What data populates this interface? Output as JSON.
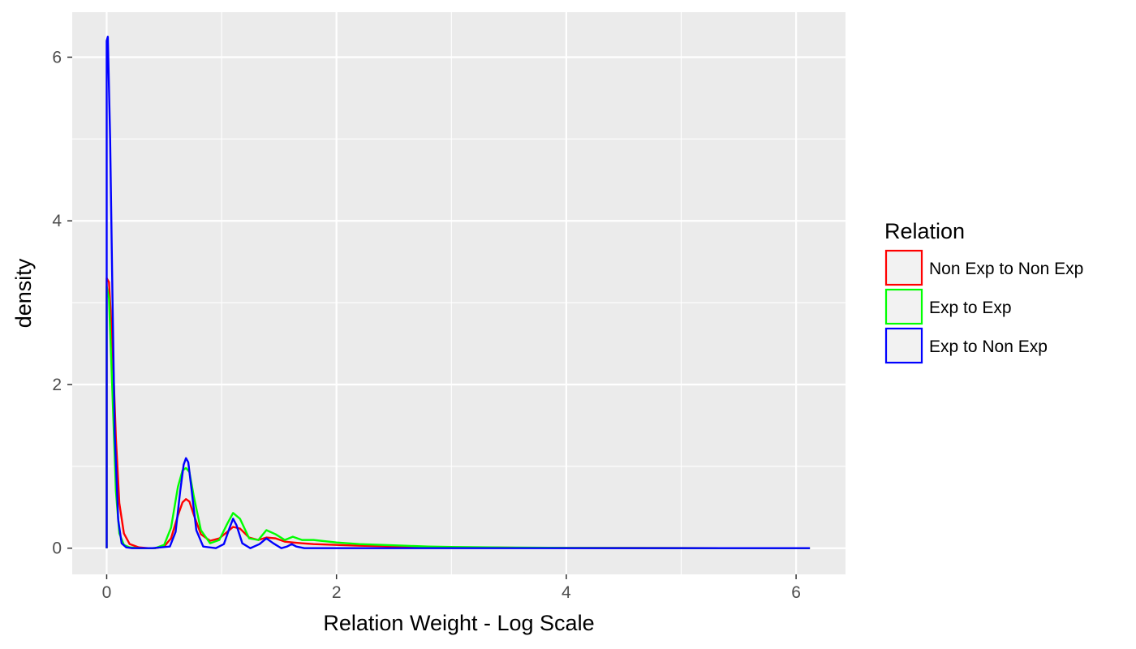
{
  "chart_data": {
    "type": "line",
    "title": "",
    "xlabel": "Relation Weight - Log Scale",
    "ylabel": "density",
    "xlim": [
      -0.3,
      6.43
    ],
    "ylim": [
      -0.32,
      6.55
    ],
    "xticks": [
      0,
      2,
      4,
      6
    ],
    "yticks": [
      0,
      2,
      4,
      6
    ],
    "xtick_labels": [
      "0",
      "2",
      "4",
      "6"
    ],
    "ytick_labels": [
      "0",
      "2",
      "4",
      "6"
    ],
    "grid": true,
    "legend": {
      "title": "Relation",
      "position": "right"
    },
    "series": [
      {
        "name": "Non Exp to Non Exp",
        "color": "#ff0000",
        "x": [
          0,
          0,
          0.02,
          0.05,
          0.08,
          0.11,
          0.15,
          0.2,
          0.28,
          0.36,
          0.42,
          0.5,
          0.56,
          0.62,
          0.66,
          0.69,
          0.72,
          0.76,
          0.82,
          0.9,
          0.98,
          1.05,
          1.1,
          1.16,
          1.24,
          1.32,
          1.39,
          1.47,
          1.55,
          1.62,
          1.7,
          1.8,
          2.0,
          2.2,
          2.4,
          2.6,
          2.8,
          3.0,
          3.5,
          4.0,
          5.0,
          6.0,
          6.12,
          6.12
        ],
        "y": [
          0,
          3.3,
          3.25,
          2.5,
          1.35,
          0.55,
          0.18,
          0.05,
          0.01,
          0.0,
          0.0,
          0.02,
          0.12,
          0.4,
          0.56,
          0.6,
          0.57,
          0.4,
          0.17,
          0.09,
          0.12,
          0.2,
          0.26,
          0.24,
          0.13,
          0.1,
          0.13,
          0.12,
          0.08,
          0.07,
          0.06,
          0.05,
          0.04,
          0.03,
          0.025,
          0.02,
          0.015,
          0.01,
          0.006,
          0.003,
          0.001,
          0.0,
          0.0,
          0
        ]
      },
      {
        "name": "Exp to Exp",
        "color": "#00ff00",
        "x": [
          0,
          0,
          0.02,
          0.05,
          0.08,
          0.11,
          0.15,
          0.2,
          0.28,
          0.36,
          0.42,
          0.5,
          0.56,
          0.62,
          0.66,
          0.69,
          0.72,
          0.76,
          0.82,
          0.9,
          0.98,
          1.05,
          1.1,
          1.16,
          1.24,
          1.32,
          1.39,
          1.47,
          1.55,
          1.62,
          1.7,
          1.8,
          2.0,
          2.2,
          2.4,
          2.6,
          2.8,
          3.0,
          3.5,
          4.0,
          5.0,
          6.0,
          6.12,
          6.12
        ],
        "y": [
          0,
          3.2,
          3.05,
          1.9,
          0.7,
          0.18,
          0.04,
          0.01,
          0.0,
          0.0,
          0.0,
          0.04,
          0.25,
          0.75,
          0.95,
          0.98,
          0.93,
          0.62,
          0.22,
          0.06,
          0.1,
          0.3,
          0.43,
          0.36,
          0.12,
          0.1,
          0.22,
          0.17,
          0.1,
          0.14,
          0.1,
          0.1,
          0.07,
          0.05,
          0.04,
          0.03,
          0.02,
          0.015,
          0.008,
          0.004,
          0.001,
          0.0,
          0.0,
          0
        ]
      },
      {
        "name": "Exp to Non Exp",
        "color": "#0000ff",
        "x": [
          0,
          0,
          0.01,
          0.03,
          0.05,
          0.07,
          0.1,
          0.13,
          0.17,
          0.22,
          0.4,
          0.55,
          0.6,
          0.64,
          0.67,
          0.69,
          0.71,
          0.74,
          0.78,
          0.84,
          0.95,
          1.02,
          1.07,
          1.1,
          1.13,
          1.18,
          1.25,
          1.33,
          1.39,
          1.45,
          1.52,
          1.57,
          1.61,
          1.65,
          1.72,
          1.8,
          2.0,
          2.5,
          3.0,
          4.0,
          5.0,
          6.12,
          6.12
        ],
        "y": [
          0,
          6.2,
          6.25,
          5.0,
          3.1,
          1.4,
          0.35,
          0.06,
          0.01,
          0.0,
          0.0,
          0.02,
          0.2,
          0.7,
          1.02,
          1.1,
          1.05,
          0.7,
          0.22,
          0.02,
          0.0,
          0.05,
          0.25,
          0.36,
          0.28,
          0.06,
          0.0,
          0.05,
          0.12,
          0.06,
          0.0,
          0.02,
          0.05,
          0.02,
          0.0,
          0.0,
          0.0,
          0.0,
          0.0,
          0.0,
          0.0,
          0.0,
          0
        ]
      }
    ]
  }
}
